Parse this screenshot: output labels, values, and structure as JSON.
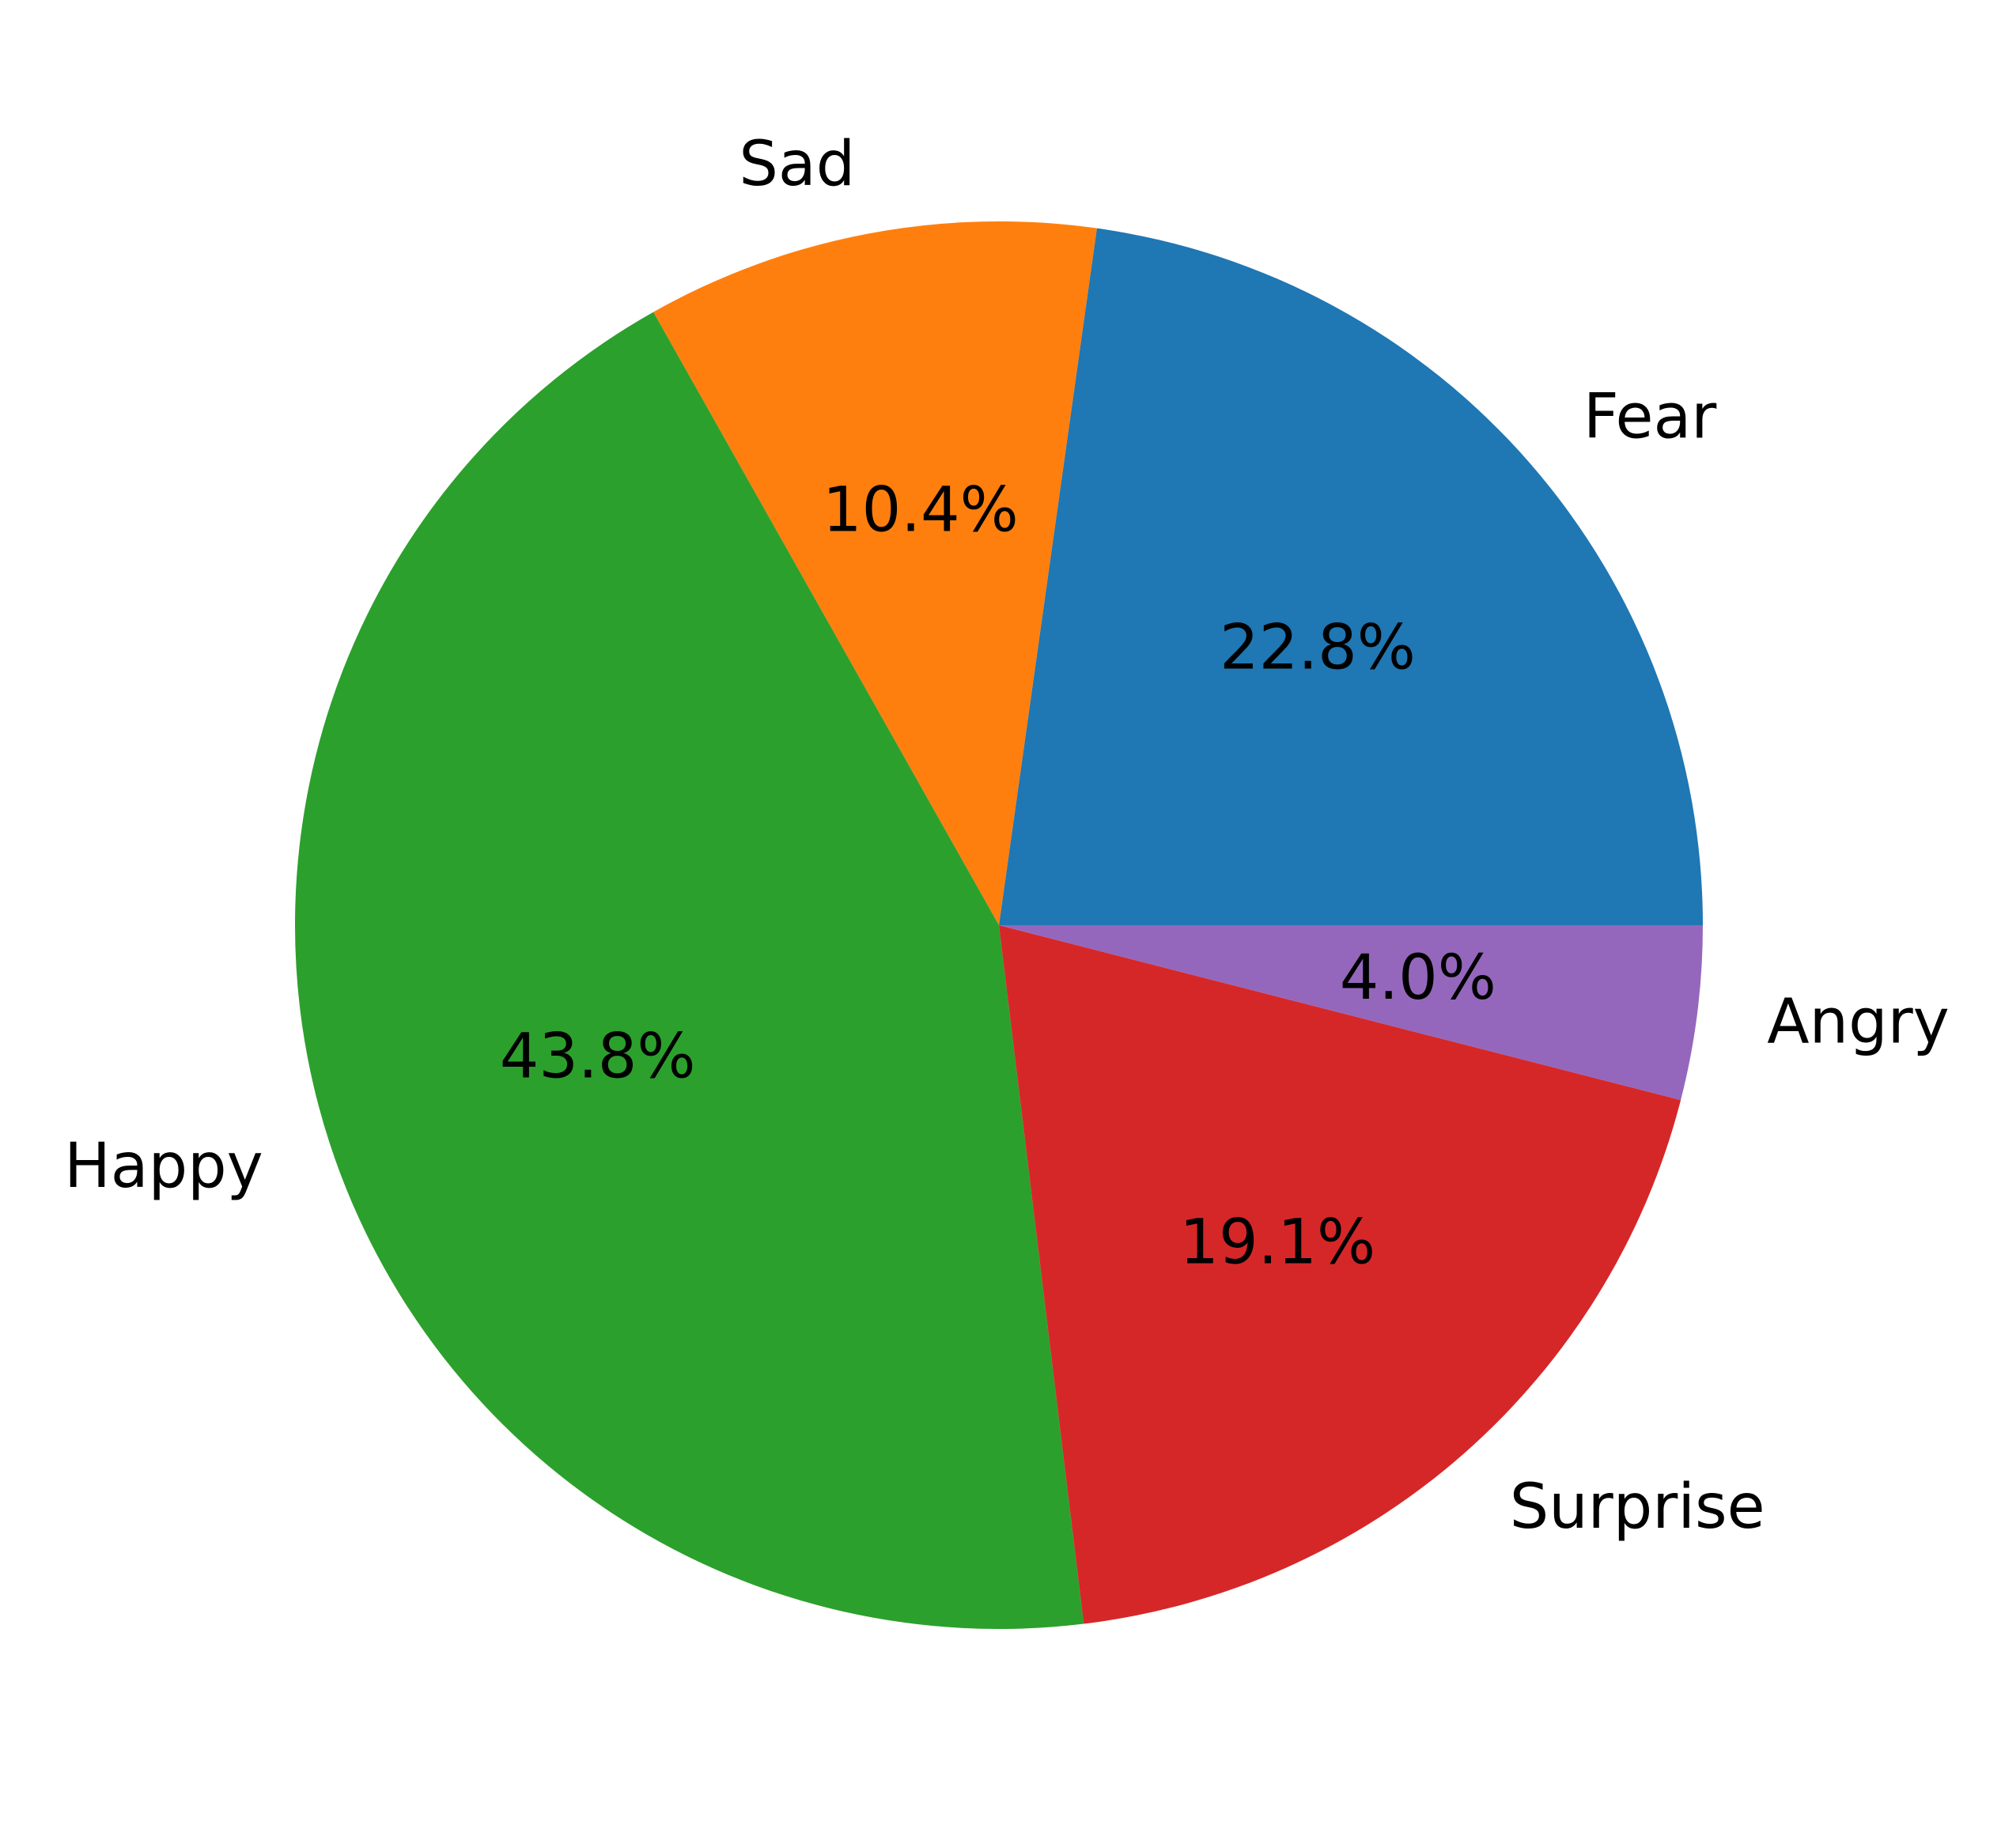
{
  "chart_data": {
    "type": "pie",
    "title": "",
    "categories": [
      "Fear",
      "Sad",
      "Happy",
      "Surprise",
      "Angry"
    ],
    "values": [
      22.8,
      10.4,
      43.8,
      19.1,
      4.0
    ],
    "value_labels": [
      "22.8%",
      "10.4%",
      "43.8%",
      "19.1%",
      "4.0%"
    ],
    "colors": [
      "#1f77b4",
      "#ff7f0e",
      "#2ca02c",
      "#d62728",
      "#9467bd"
    ],
    "start_angle_deg": 0,
    "direction": "counterclockwise",
    "legend": "none"
  }
}
